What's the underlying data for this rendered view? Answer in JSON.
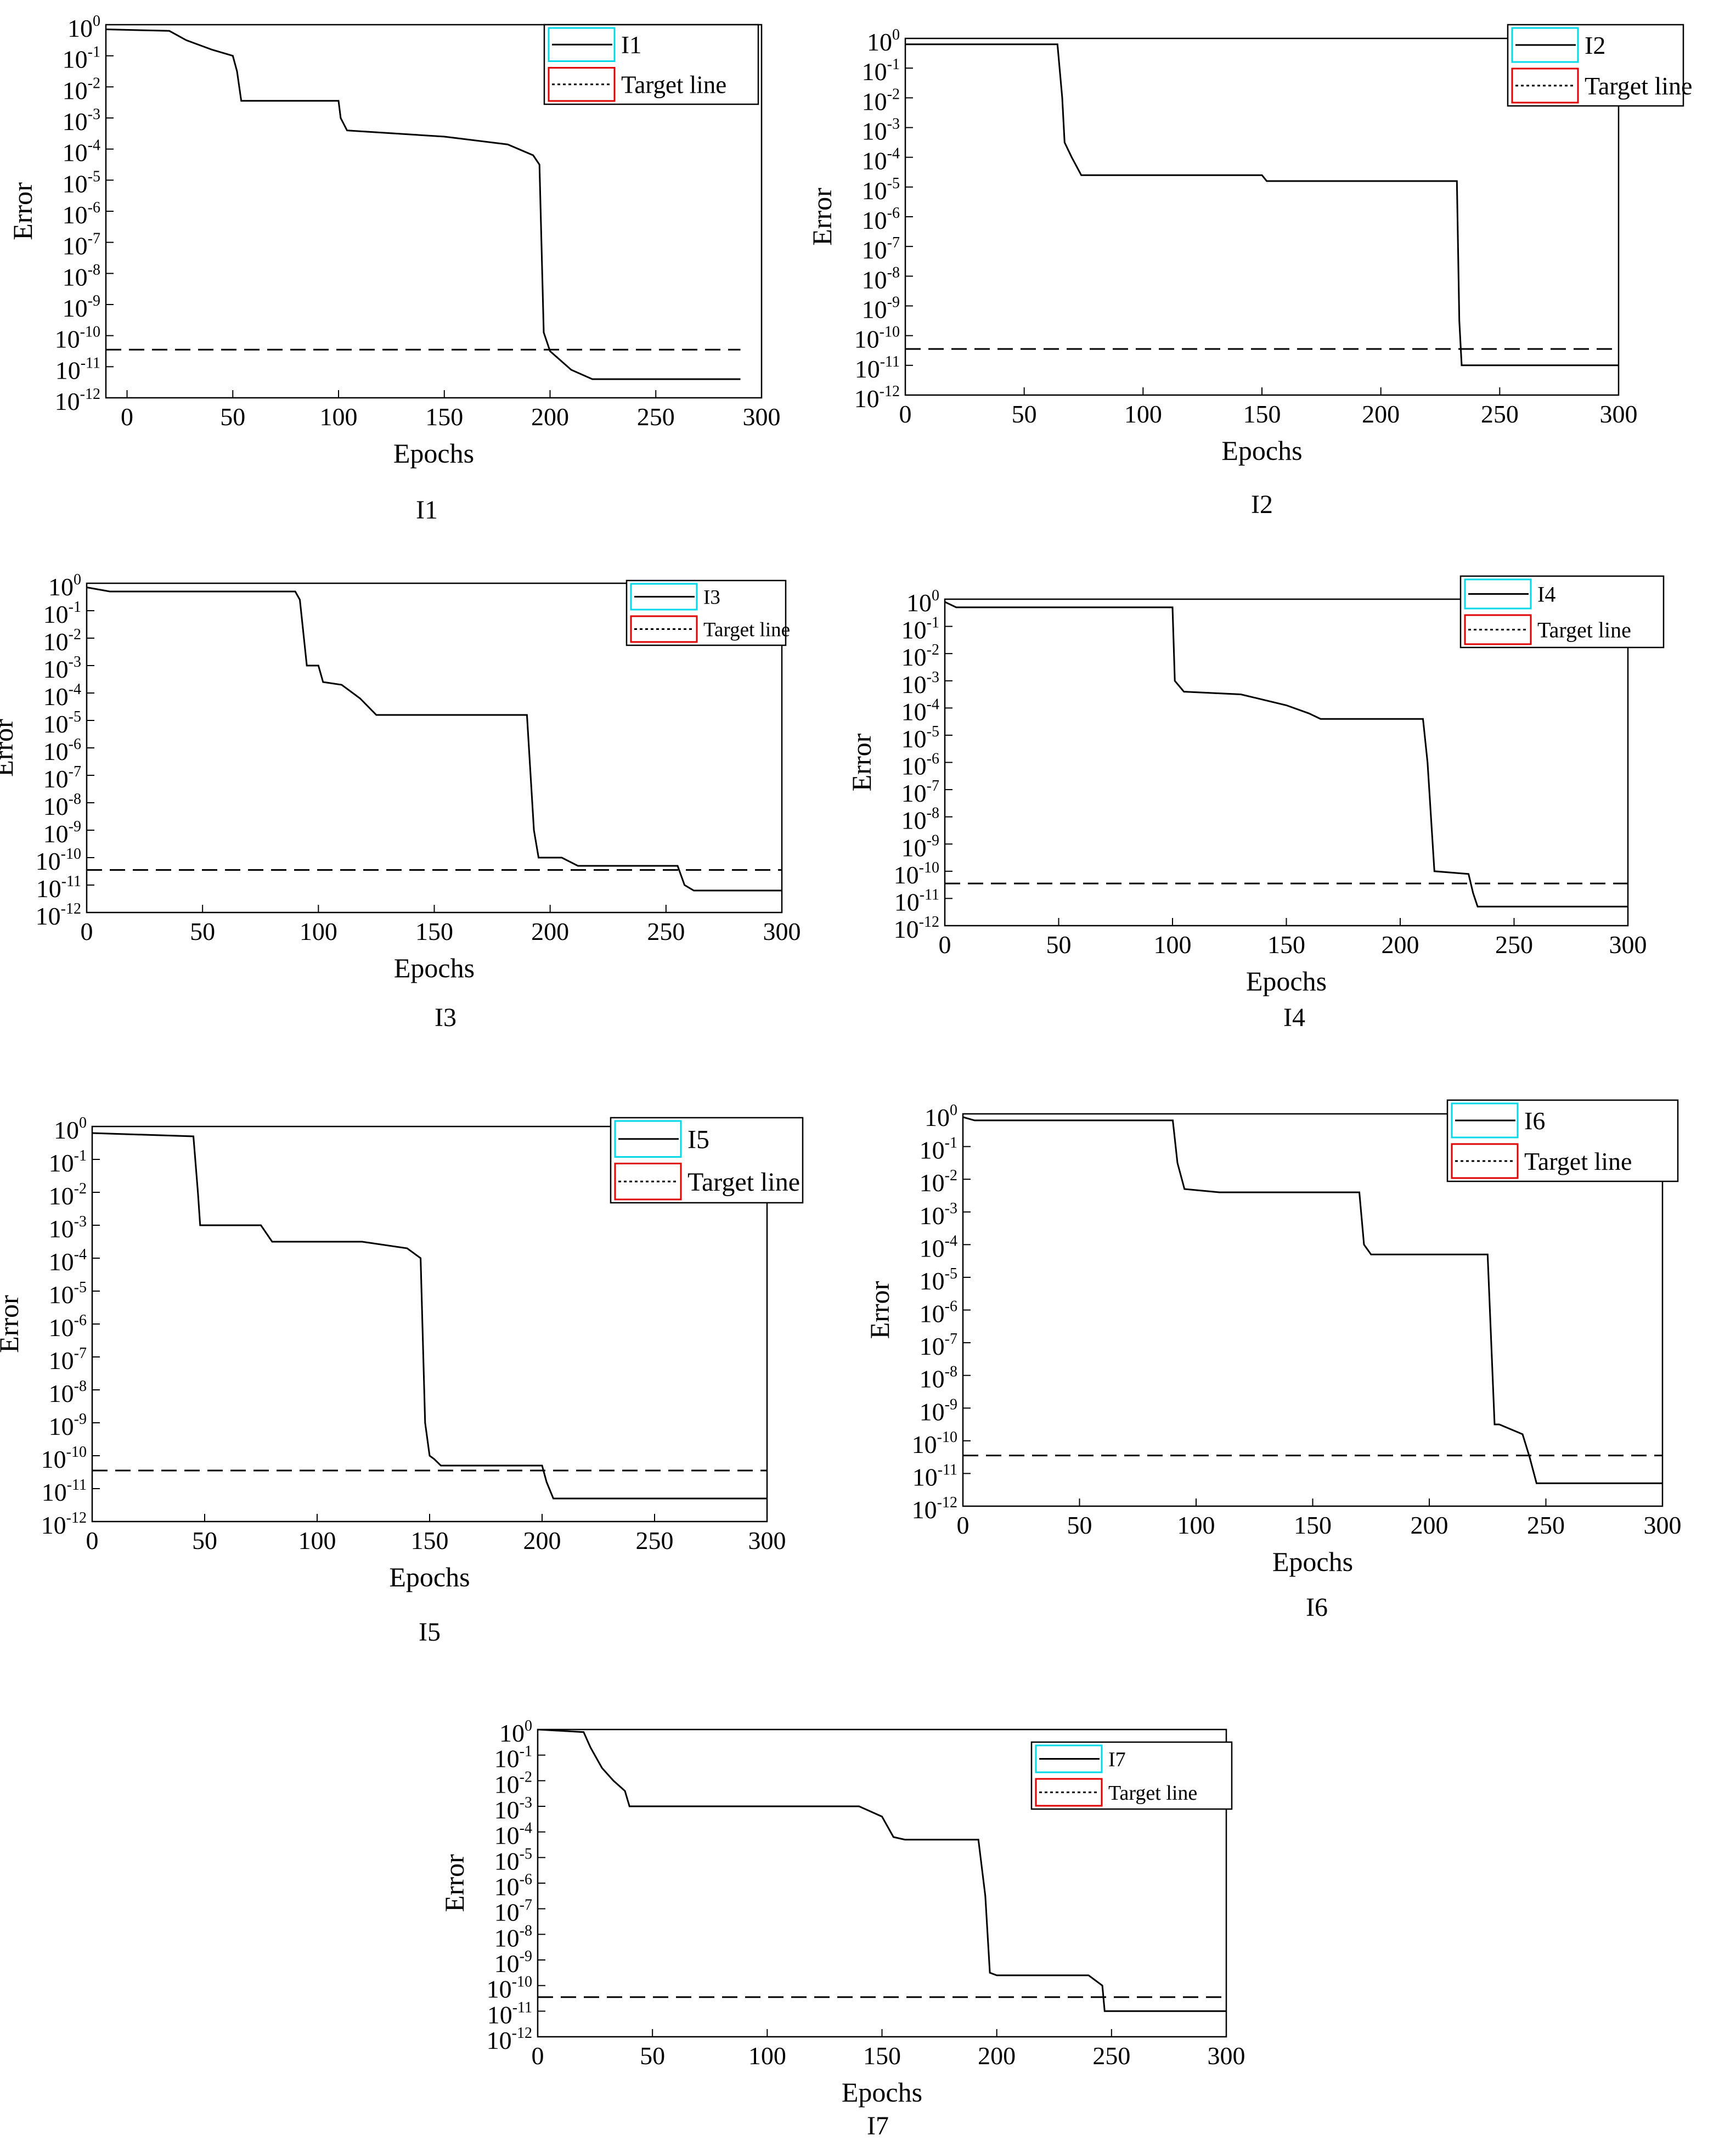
{
  "chart_data": [
    {
      "id": "I1",
      "type": "line",
      "caption": "I1",
      "xlabel": "Epochs",
      "ylabel": "Error",
      "xlim": [
        -10,
        300
      ],
      "ylim_exp": [
        -12,
        0
      ],
      "xticks": [
        0,
        50,
        100,
        150,
        200,
        250,
        300
      ],
      "legend": {
        "position": "top-right",
        "entries": [
          "I1",
          "Target line"
        ]
      },
      "target": -10.45,
      "series": [
        {
          "name": "I1",
          "x": [
            -10,
            20,
            28,
            40,
            50,
            52,
            54,
            100,
            101,
            104,
            150,
            180,
            192,
            195,
            197,
            200,
            205,
            210,
            220,
            290
          ],
          "y": [
            -0.15,
            -0.2,
            -0.5,
            -0.8,
            -1.0,
            -1.5,
            -2.45,
            -2.45,
            -3.0,
            -3.4,
            -3.6,
            -3.85,
            -4.2,
            -4.5,
            -9.9,
            -10.5,
            -10.8,
            -11.1,
            -11.4,
            -11.4
          ]
        },
        {
          "name": "Target line",
          "x": [
            -10,
            290
          ],
          "y": [
            -10.45,
            -10.45
          ]
        }
      ]
    },
    {
      "id": "I2",
      "type": "line",
      "caption": "I2",
      "xlabel": "Epochs",
      "ylabel": "Error",
      "xlim": [
        0,
        300
      ],
      "ylim_exp": [
        -12,
        0
      ],
      "xticks": [
        0,
        50,
        100,
        150,
        200,
        250,
        300
      ],
      "legend": {
        "position": "top-right",
        "entries": [
          "I2",
          "Target line"
        ]
      },
      "target": -10.45,
      "series": [
        {
          "name": "I2",
          "x": [
            0,
            64,
            66,
            67,
            70,
            74,
            150,
            152,
            232,
            233,
            234,
            300
          ],
          "y": [
            -0.2,
            -0.2,
            -2.0,
            -3.5,
            -4.0,
            -4.6,
            -4.6,
            -4.8,
            -4.8,
            -9.5,
            -11.0,
            -11.0
          ]
        },
        {
          "name": "Target line",
          "x": [
            0,
            300
          ],
          "y": [
            -10.45,
            -10.45
          ]
        }
      ]
    },
    {
      "id": "I3",
      "type": "line",
      "caption": "I3",
      "xlabel": "Epochs",
      "ylabel": "Error",
      "xlim": [
        0,
        300
      ],
      "ylim_exp": [
        -12,
        0
      ],
      "xticks": [
        0,
        50,
        100,
        150,
        200,
        250,
        300
      ],
      "legend": {
        "position": "top-right",
        "entries": [
          "I3",
          "Target line"
        ]
      },
      "target": -10.45,
      "series": [
        {
          "name": "I3",
          "x": [
            0,
            10,
            90,
            92,
            95,
            100,
            102,
            110,
            118,
            125,
            190,
            193,
            195,
            205,
            212,
            255,
            258,
            262,
            300
          ],
          "y": [
            -0.15,
            -0.3,
            -0.3,
            -0.6,
            -3.0,
            -3.0,
            -3.6,
            -3.7,
            -4.2,
            -4.8,
            -4.8,
            -9.0,
            -10.0,
            -10.0,
            -10.3,
            -10.3,
            -11.0,
            -11.2,
            -11.2
          ]
        },
        {
          "name": "Target line",
          "x": [
            0,
            300
          ],
          "y": [
            -10.45,
            -10.45
          ]
        }
      ]
    },
    {
      "id": "I4",
      "type": "line",
      "caption": "I4",
      "xlabel": "Epochs",
      "ylabel": "Error",
      "xlim": [
        0,
        300
      ],
      "ylim_exp": [
        -12,
        0
      ],
      "xticks": [
        0,
        50,
        100,
        150,
        200,
        250,
        300
      ],
      "legend": {
        "position": "top-right",
        "entries": [
          "I4",
          "Target line"
        ]
      },
      "target": -10.45,
      "series": [
        {
          "name": "I4",
          "x": [
            0,
            5,
            100,
            101,
            105,
            130,
            150,
            160,
            165,
            210,
            212,
            215,
            230,
            232,
            234,
            300
          ],
          "y": [
            -0.1,
            -0.3,
            -0.3,
            -3.0,
            -3.4,
            -3.5,
            -3.9,
            -4.2,
            -4.4,
            -4.4,
            -6.0,
            -10.0,
            -10.1,
            -10.8,
            -11.3,
            -11.3
          ]
        },
        {
          "name": "Target line",
          "x": [
            0,
            300
          ],
          "y": [
            -10.45,
            -10.45
          ]
        }
      ]
    },
    {
      "id": "I5",
      "type": "line",
      "caption": "I5",
      "xlabel": "Epochs",
      "ylabel": "Error",
      "xlim": [
        0,
        300
      ],
      "ylim_exp": [
        -12,
        0
      ],
      "xticks": [
        0,
        50,
        100,
        150,
        200,
        250,
        300
      ],
      "legend": {
        "position": "top-right",
        "entries": [
          "I5",
          "Target line"
        ]
      },
      "target": -10.45,
      "series": [
        {
          "name": "I5",
          "x": [
            0,
            45,
            47,
            48,
            75,
            80,
            120,
            140,
            146,
            148,
            150,
            152,
            155,
            200,
            202,
            205,
            300
          ],
          "y": [
            -0.2,
            -0.3,
            -2.0,
            -3.0,
            -3.0,
            -3.5,
            -3.5,
            -3.7,
            -4.0,
            -9.0,
            -10.0,
            -10.1,
            -10.3,
            -10.3,
            -10.8,
            -11.3,
            -11.3
          ]
        },
        {
          "name": "Target line",
          "x": [
            0,
            300
          ],
          "y": [
            -10.45,
            -10.45
          ]
        }
      ]
    },
    {
      "id": "I6",
      "type": "line",
      "caption": "I6",
      "xlabel": "Epochs",
      "ylabel": "Error",
      "xlim": [
        0,
        300
      ],
      "ylim_exp": [
        -12,
        0
      ],
      "xticks": [
        0,
        50,
        100,
        150,
        200,
        250,
        300
      ],
      "legend": {
        "position": "top-right",
        "entries": [
          "I6",
          "Target line"
        ]
      },
      "target": -10.45,
      "series": [
        {
          "name": "I6",
          "x": [
            0,
            5,
            90,
            92,
            95,
            110,
            170,
            172,
            175,
            225,
            228,
            230,
            240,
            243,
            246,
            300
          ],
          "y": [
            -0.1,
            -0.2,
            -0.2,
            -1.5,
            -2.3,
            -2.4,
            -2.4,
            -4.0,
            -4.3,
            -4.3,
            -9.5,
            -9.5,
            -9.8,
            -10.5,
            -11.3,
            -11.3
          ]
        },
        {
          "name": "Target line",
          "x": [
            0,
            300
          ],
          "y": [
            -10.45,
            -10.45
          ]
        }
      ]
    },
    {
      "id": "I7",
      "type": "line",
      "caption": "I7",
      "xlabel": "Epochs",
      "ylabel": "Error",
      "xlim": [
        0,
        300
      ],
      "ylim_exp": [
        -12,
        0
      ],
      "xticks": [
        0,
        50,
        100,
        150,
        200,
        250,
        300
      ],
      "legend": {
        "position": "top-right",
        "entries": [
          "I7",
          "Target line"
        ]
      },
      "target": -10.45,
      "series": [
        {
          "name": "I7",
          "x": [
            0,
            20,
            23,
            28,
            33,
            38,
            40,
            140,
            150,
            155,
            160,
            192,
            195,
            197,
            200,
            240,
            246,
            247,
            300
          ],
          "y": [
            0,
            -0.1,
            -0.7,
            -1.5,
            -2.0,
            -2.4,
            -3.0,
            -3.0,
            -3.4,
            -4.2,
            -4.3,
            -4.3,
            -6.5,
            -9.5,
            -9.6,
            -9.6,
            -10.0,
            -11.0,
            -11.0
          ]
        },
        {
          "name": "Target line",
          "x": [
            0,
            300
          ],
          "y": [
            -10.45,
            -10.45
          ]
        }
      ]
    }
  ]
}
